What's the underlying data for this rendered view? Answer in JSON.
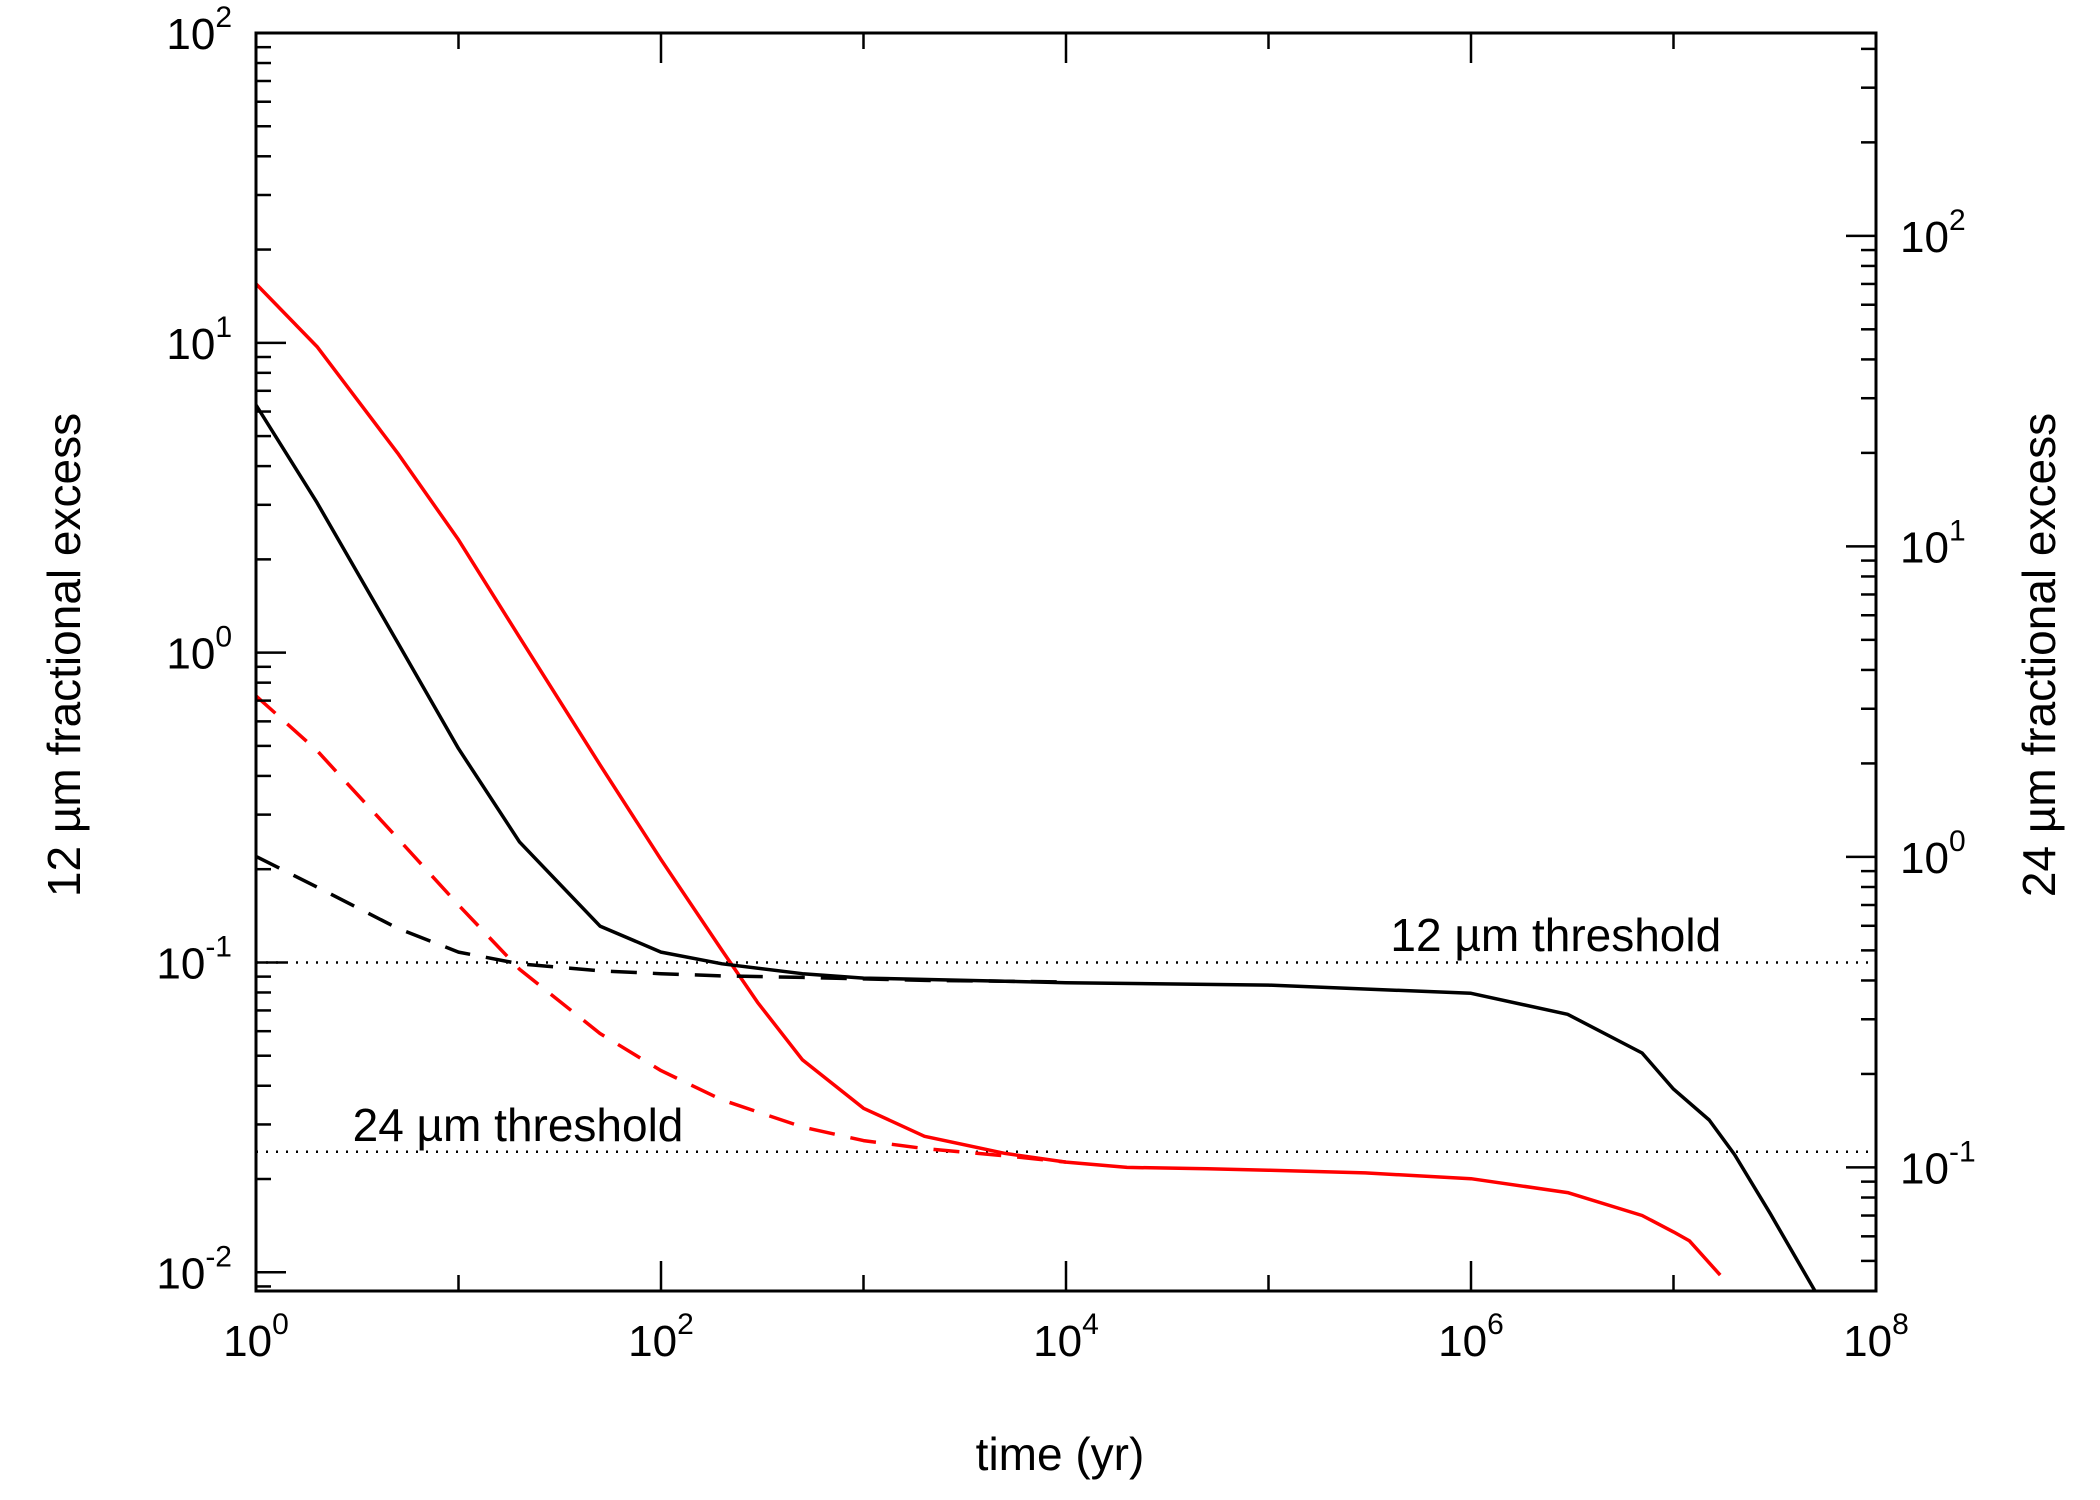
{
  "chart_data": {
    "type": "line",
    "title": "",
    "xlabel": "time (yr)",
    "ylabel_left": "12 µm fractional excess",
    "ylabel_right": "24 µm fractional excess",
    "x_scale": "log",
    "y_scale": "log",
    "xlim": [
      1,
      100000000
    ],
    "ylim_left": [
      0.0087,
      100
    ],
    "ylim_right": [
      0.04,
      450
    ],
    "grid": false,
    "legend": "none",
    "x_ticks": [
      {
        "base": "10",
        "exp": "0",
        "value": 1
      },
      {
        "base": "10",
        "exp": "2",
        "value": 100
      },
      {
        "base": "10",
        "exp": "4",
        "value": 10000
      },
      {
        "base": "10",
        "exp": "6",
        "value": 1000000
      },
      {
        "base": "10",
        "exp": "8",
        "value": 100000000
      }
    ],
    "y_left_ticks": [
      {
        "base": "10",
        "exp": "-2",
        "value": 0.01
      },
      {
        "base": "10",
        "exp": "-1",
        "value": 0.1
      },
      {
        "base": "10",
        "exp": "0",
        "value": 1
      },
      {
        "base": "10",
        "exp": "1",
        "value": 10
      },
      {
        "base": "10",
        "exp": "2",
        "value": 100
      }
    ],
    "y_right_ticks": [
      {
        "base": "10",
        "exp": "-1",
        "value": 0.1
      },
      {
        "base": "10",
        "exp": "0",
        "value": 1
      },
      {
        "base": "10",
        "exp": "1",
        "value": 10
      },
      {
        "base": "10",
        "exp": "2",
        "value": 100
      }
    ],
    "annotations": [
      {
        "text": "12 µm threshold",
        "x": 400000,
        "y": 0.109
      },
      {
        "text": "24 µm threshold",
        "x": 3,
        "y": 0.0265
      }
    ],
    "thresholds": [
      {
        "axis": "left",
        "y": 0.1,
        "style": "dotted"
      },
      {
        "axis": "left",
        "y": 0.0245,
        "style": "dotted"
      }
    ],
    "series": [
      {
        "axis": "right",
        "color": "#ff0000",
        "style": "solid",
        "x": [
          1,
          2,
          5,
          10,
          20,
          50,
          100,
          200,
          300,
          500,
          1000,
          2000,
          5000,
          10000,
          20000,
          50000,
          100000,
          300000,
          1000000,
          3000000,
          7000000,
          10000000,
          12000000,
          17000000
        ],
        "y": [
          70,
          44,
          20,
          10.5,
          5.1,
          1.98,
          0.98,
          0.5,
          0.34,
          0.222,
          0.155,
          0.126,
          0.111,
          0.104,
          0.1,
          0.099,
          0.098,
          0.096,
          0.092,
          0.083,
          0.07,
          0.062,
          0.058,
          0.045
        ]
      },
      {
        "axis": "left",
        "color": "#000000",
        "style": "solid",
        "x": [
          1,
          2,
          5,
          10,
          20,
          50,
          100,
          200,
          500,
          1000,
          5000,
          10000,
          100000,
          1000000,
          3000000,
          7000000,
          10000000,
          15000000,
          20000000,
          30000000,
          50000000
        ],
        "y": [
          6.3,
          3.05,
          1.08,
          0.49,
          0.245,
          0.131,
          0.108,
          0.099,
          0.092,
          0.089,
          0.087,
          0.086,
          0.0845,
          0.0795,
          0.068,
          0.051,
          0.039,
          0.031,
          0.024,
          0.0155,
          0.0087
        ]
      },
      {
        "axis": "right",
        "color": "#ff0000",
        "style": "dashed",
        "x": [
          1,
          2,
          5,
          10,
          20,
          50,
          100,
          200,
          500,
          1000,
          2000,
          5000,
          10000
        ],
        "y": [
          3.3,
          2.2,
          1.15,
          0.7,
          0.435,
          0.27,
          0.205,
          0.165,
          0.135,
          0.122,
          0.115,
          0.109,
          0.104
        ]
      },
      {
        "axis": "left",
        "color": "#000000",
        "style": "dashed",
        "x": [
          1,
          2,
          5,
          10,
          20,
          50,
          100,
          200,
          500,
          1000,
          2000,
          5000,
          10000
        ],
        "y": [
          0.22,
          0.175,
          0.129,
          0.108,
          0.099,
          0.094,
          0.092,
          0.0905,
          0.0895,
          0.0885,
          0.0875,
          0.087,
          0.0865
        ]
      }
    ]
  }
}
